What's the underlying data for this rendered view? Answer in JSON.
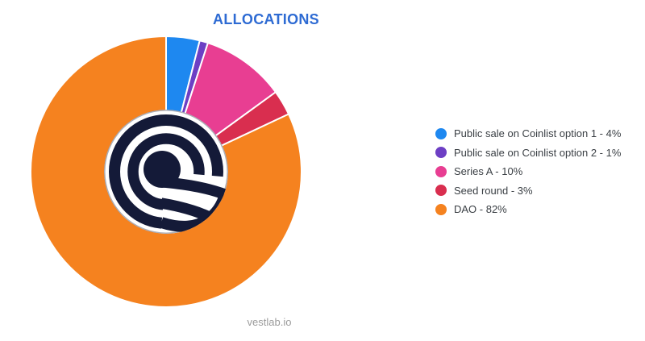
{
  "page": {
    "watermark": "vestlab.io"
  },
  "chart_data": {
    "type": "pie",
    "title": "ALLOCATIONS",
    "legend_position": "right",
    "start_angle": "12-oclock",
    "direction": "clockwise",
    "slice_gap_color": "#ffffff",
    "categories": [
      "Public sale on Coinlist option 1",
      "Public sale on Coinlist option 2",
      "Series A",
      "Seed round",
      "DAO"
    ],
    "values": [
      4,
      1,
      10,
      3,
      82
    ],
    "unit": "%",
    "colors": [
      "#1e88f0",
      "#6d3fc4",
      "#e83e92",
      "#d92e4f",
      "#f5821f"
    ],
    "legend_labels": [
      "Public sale on Coinlist option 1 - 4%",
      "Public sale on Coinlist option 2 - 1%",
      "Series A - 10%",
      "Seed round - 3%",
      "DAO - 82%"
    ],
    "center_logo": {
      "name": "concentric-spiral-at-logo",
      "navy": "#141a38",
      "bg": "#ffffff"
    }
  },
  "styles": {
    "title_color": "#2e6bd3",
    "legend_text_color": "#3a3f44",
    "watermark_color": "#9b9b9b",
    "background": "#ffffff"
  }
}
